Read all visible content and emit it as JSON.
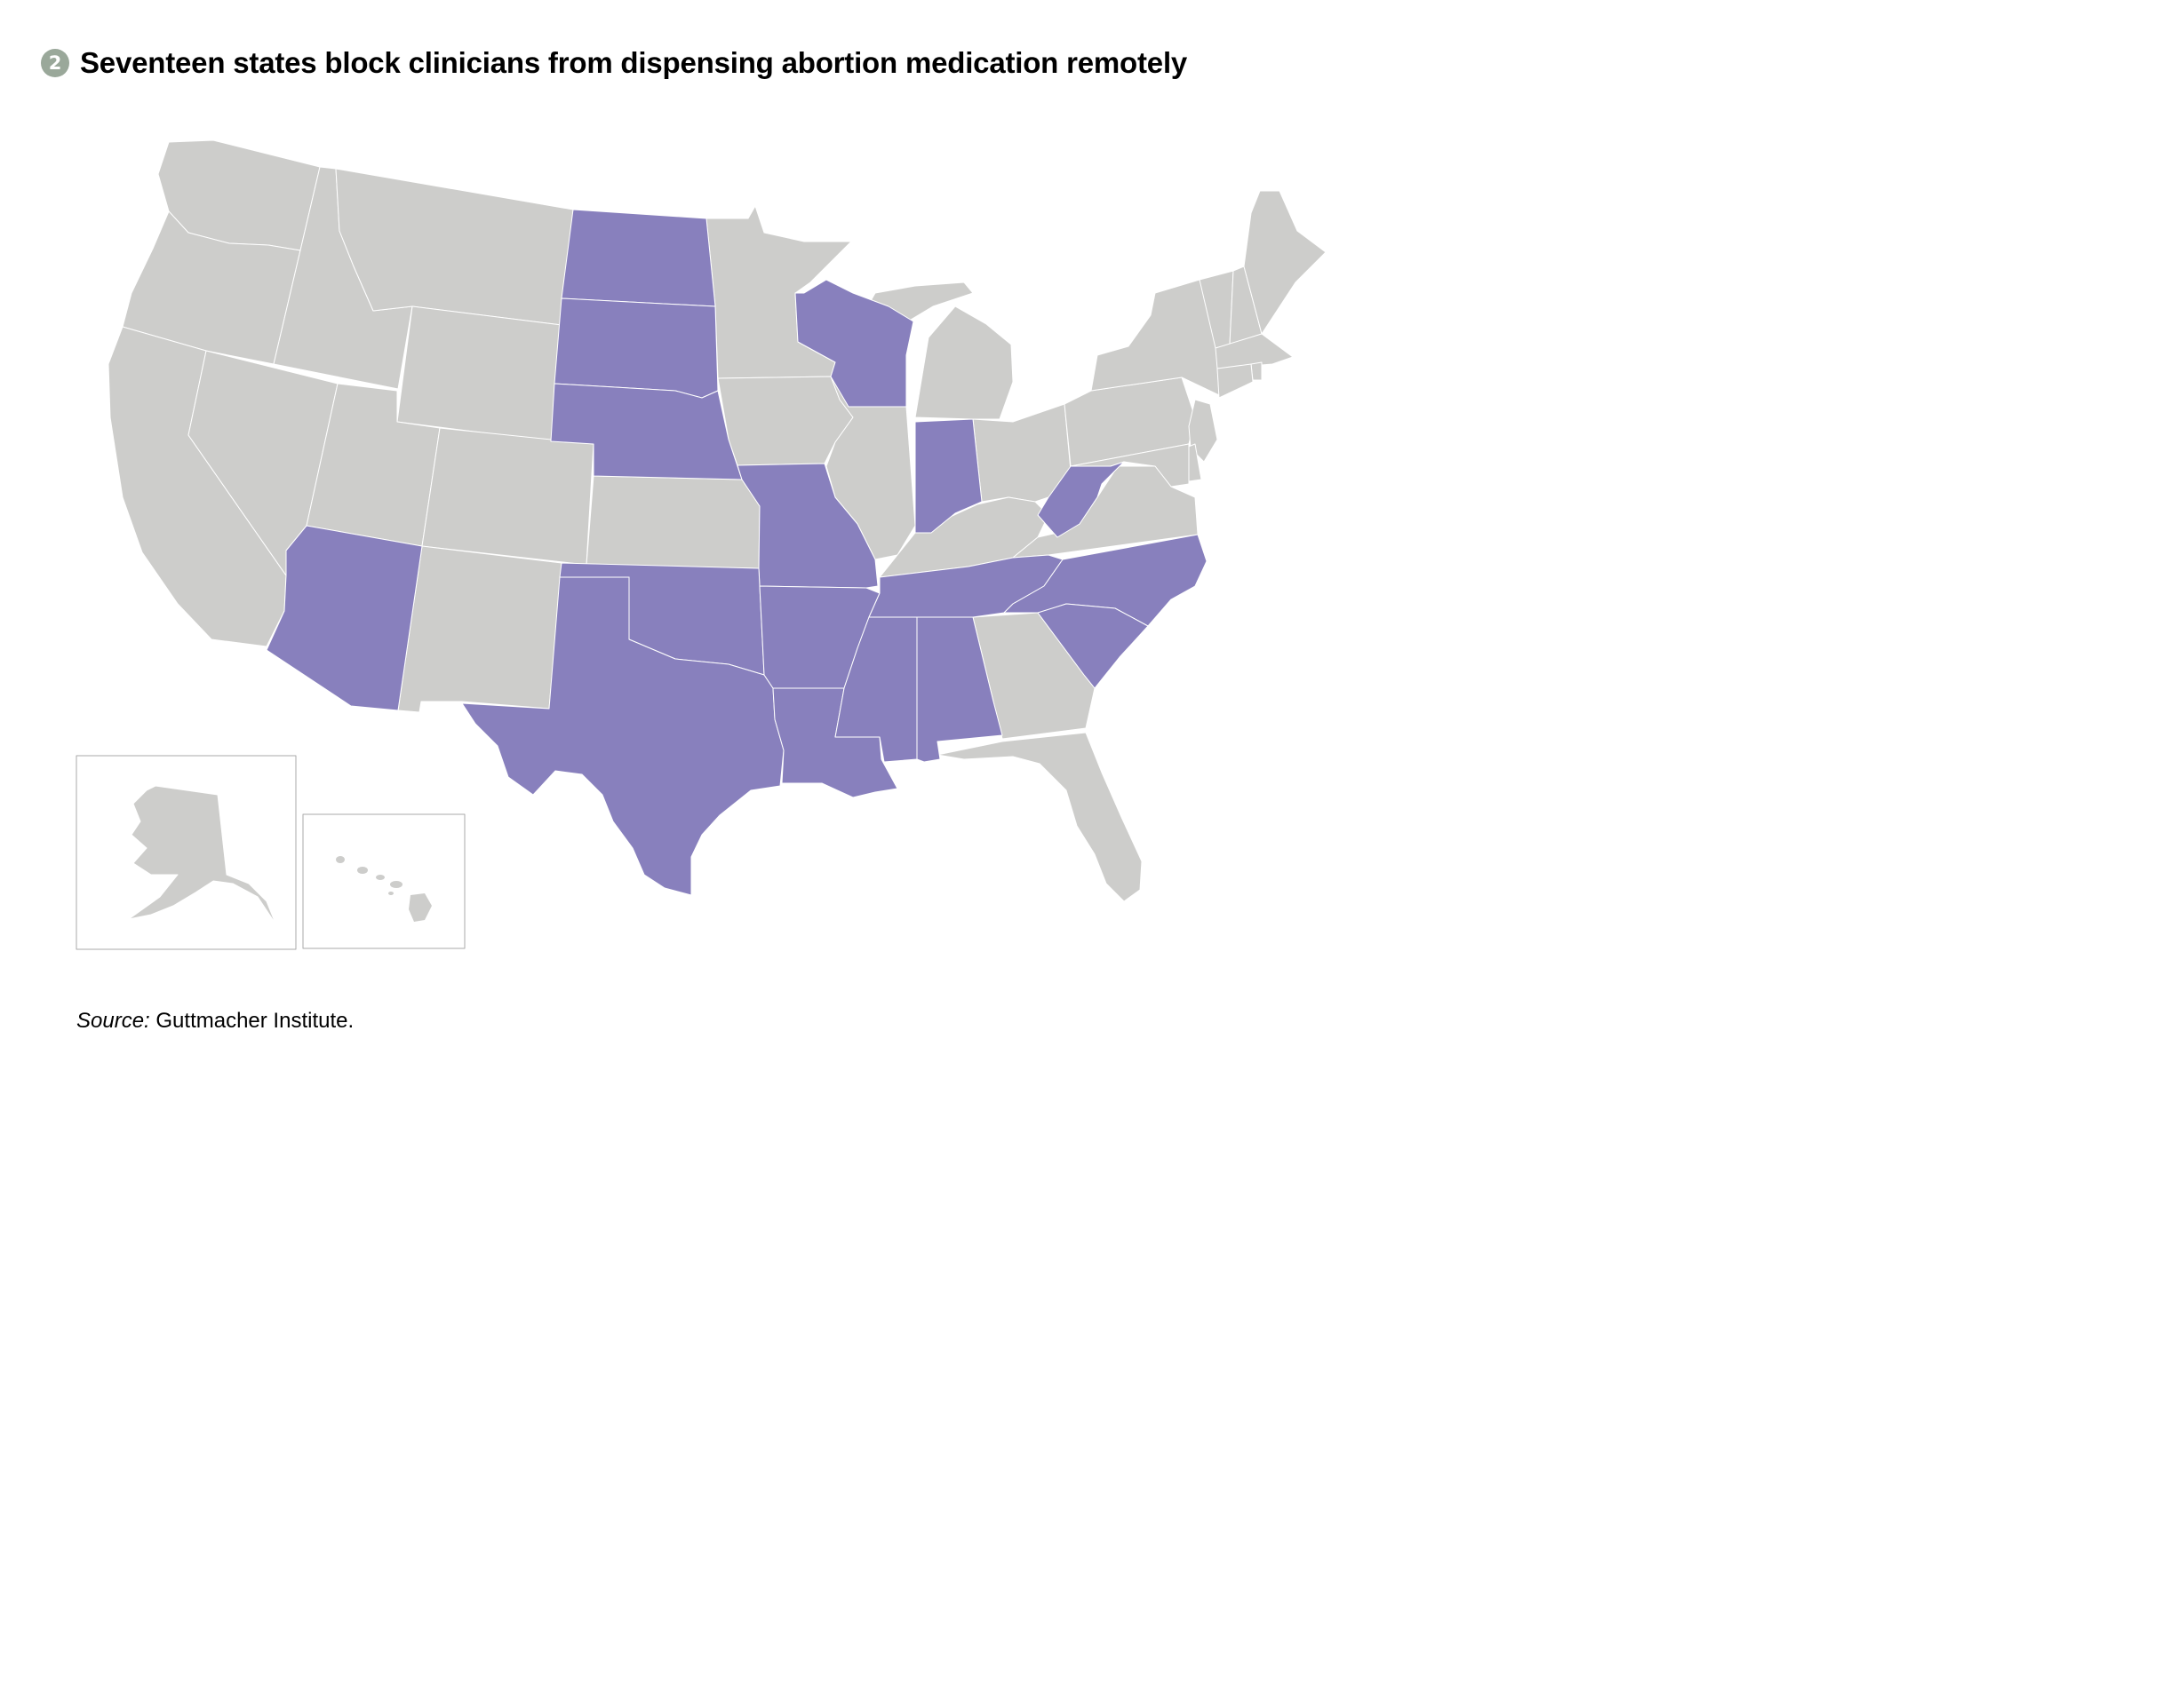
{
  "header": {
    "badge_number": "2",
    "title": "Seventeen states block clinicians from dispensing abortion medication remotely"
  },
  "map": {
    "colors": {
      "blocked": "#8880bd",
      "other": "#cdcdcb",
      "border": "#ffffff",
      "inset_frame": "#aaaaaa"
    },
    "blocked_states": [
      "North Dakota",
      "South Dakota",
      "Nebraska",
      "Wisconsin",
      "Indiana",
      "West Virginia",
      "Missouri",
      "Arizona",
      "Texas",
      "Oklahoma",
      "Arkansas",
      "Louisiana",
      "Mississippi",
      "Alabama",
      "Tennessee",
      "North Carolina",
      "South Carolina"
    ]
  },
  "source": {
    "label": "Source:",
    "text": " Guttmacher Institute."
  }
}
